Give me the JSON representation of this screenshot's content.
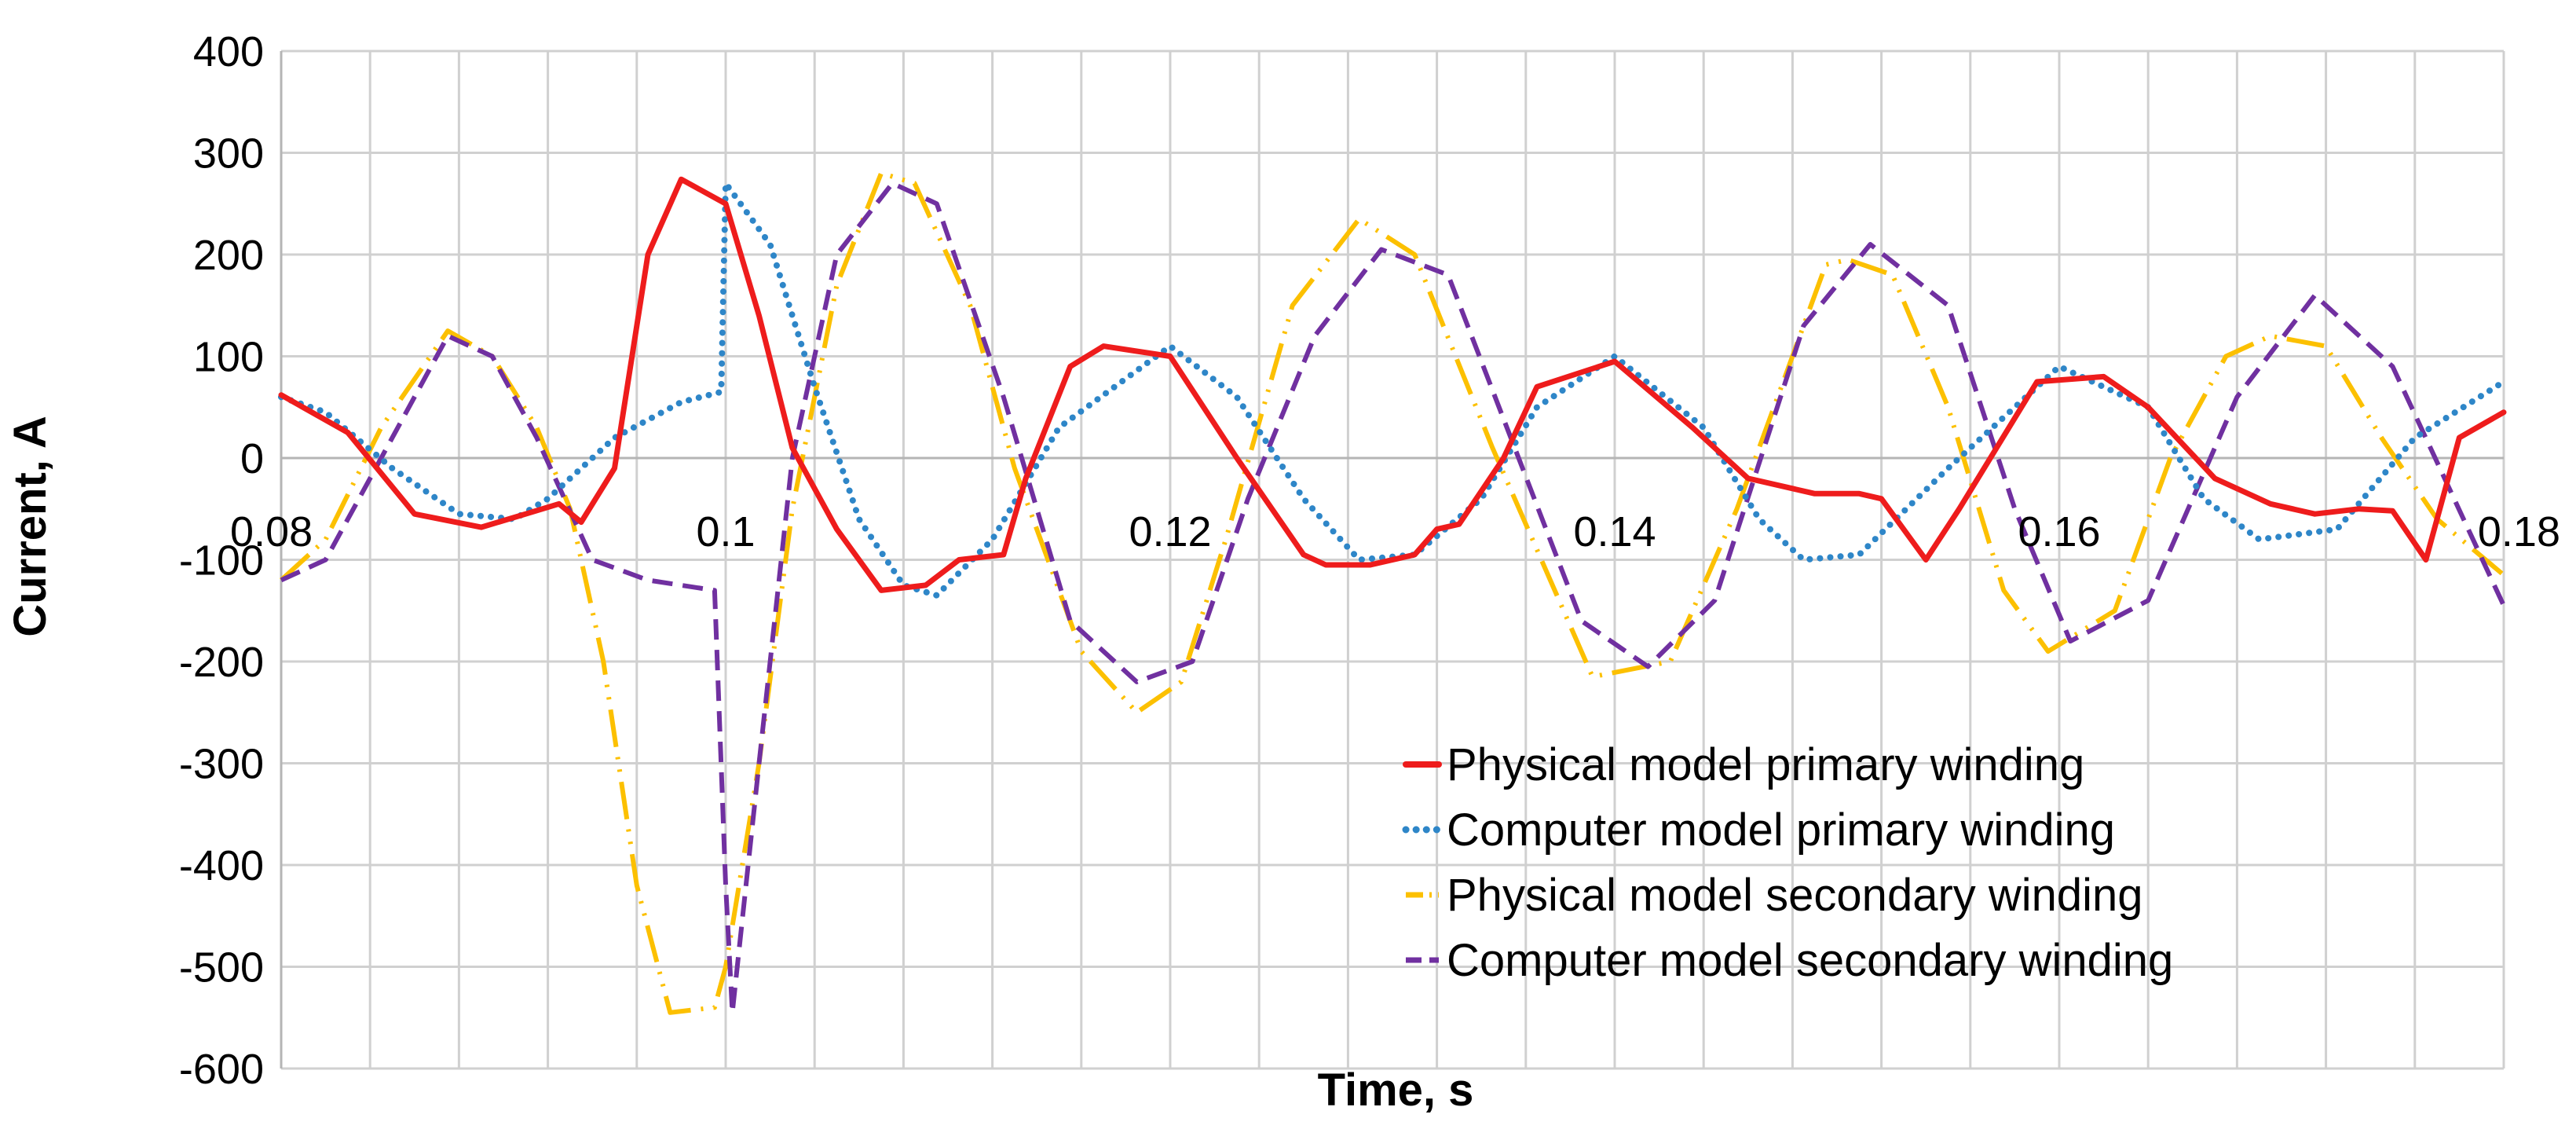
{
  "chart_data": {
    "type": "line",
    "xlabel": "Time, s",
    "ylabel": "Current, A",
    "xlim": [
      0.08,
      0.18
    ],
    "ylim": [
      -600,
      400
    ],
    "xticks": [
      0.08,
      0.1,
      0.12,
      0.14,
      0.16,
      0.18
    ],
    "xtick_labels": [
      "0.08",
      "0.1",
      "0.12",
      "0.14",
      "0.16",
      "0.18"
    ],
    "yticks": [
      -600,
      -500,
      -400,
      -300,
      -200,
      -100,
      0,
      100,
      200,
      300,
      400
    ],
    "ytick_labels": [
      "-600",
      "-500",
      "-400",
      "-300",
      "-200",
      "-100",
      "0",
      "100",
      "200",
      "300",
      "400"
    ],
    "x_grid_step": 0.004,
    "grid": true,
    "legend_position": "bottom-right",
    "series": [
      {
        "name": "Physical model primary winding",
        "color": "#ee1c1c",
        "style": "solid",
        "x": [
          0.08,
          0.083,
          0.086,
          0.089,
          0.091,
          0.0925,
          0.0935,
          0.095,
          0.0965,
          0.098,
          0.1,
          0.1015,
          0.103,
          0.105,
          0.107,
          0.109,
          0.1105,
          0.1125,
          0.1135,
          0.1155,
          0.117,
          0.12,
          0.123,
          0.126,
          0.127,
          0.129,
          0.131,
          0.132,
          0.133,
          0.135,
          0.1365,
          0.14,
          0.1435,
          0.146,
          0.149,
          0.151,
          0.152,
          0.154,
          0.1555,
          0.159,
          0.162,
          0.164,
          0.167,
          0.1695,
          0.1715,
          0.1735,
          0.175,
          0.1765,
          0.178,
          0.18
        ],
        "y": [
          62,
          25,
          -55,
          -68,
          -55,
          -45,
          -63,
          -10,
          200,
          274,
          250,
          140,
          10,
          -70,
          -130,
          -125,
          -100,
          -95,
          -20,
          90,
          110,
          100,
          0,
          -95,
          -105,
          -105,
          -95,
          -70,
          -65,
          0,
          70,
          95,
          30,
          -20,
          -35,
          -35,
          -40,
          -100,
          -50,
          75,
          80,
          50,
          -20,
          -45,
          -55,
          -50,
          -52,
          -100,
          20,
          45
        ]
      },
      {
        "name": "Computer model primary winding",
        "color": "#2e86c8",
        "style": "dotted",
        "x": [
          0.08,
          0.082,
          0.085,
          0.088,
          0.0905,
          0.092,
          0.095,
          0.098,
          0.0998,
          0.1,
          0.1005,
          0.102,
          0.104,
          0.106,
          0.108,
          0.1095,
          0.112,
          0.115,
          0.12,
          0.123,
          0.126,
          0.1285,
          0.131,
          0.134,
          0.1365,
          0.14,
          0.144,
          0.1465,
          0.1485,
          0.151,
          0.155,
          0.16,
          0.164,
          0.1665,
          0.169,
          0.1725,
          0.176,
          0.18
        ],
        "y": [
          60,
          45,
          -10,
          -55,
          -60,
          -40,
          20,
          55,
          65,
          270,
          255,
          210,
          70,
          -60,
          -125,
          -135,
          -80,
          30,
          110,
          60,
          -40,
          -100,
          -95,
          -40,
          50,
          100,
          30,
          -60,
          -100,
          -95,
          -10,
          90,
          50,
          -40,
          -80,
          -70,
          20,
          75
        ]
      },
      {
        "name": "Physical model secondary winding",
        "color": "#fcc000",
        "style": "dashdot",
        "x": [
          0.08,
          0.082,
          0.0845,
          0.0875,
          0.0895,
          0.0915,
          0.093,
          0.0945,
          0.096,
          0.0975,
          0.0995,
          0.1,
          0.1015,
          0.103,
          0.105,
          0.107,
          0.1085,
          0.111,
          0.113,
          0.116,
          0.1185,
          0.1205,
          0.1225,
          0.1255,
          0.1285,
          0.131,
          0.1345,
          0.139,
          0.1425,
          0.1455,
          0.1495,
          0.1505,
          0.1525,
          0.155,
          0.1575,
          0.1595,
          0.1625,
          0.165,
          0.1675,
          0.1695,
          0.172,
          0.1745,
          0.177,
          0.18
        ],
        "y": [
          -120,
          -80,
          30,
          125,
          100,
          30,
          -50,
          -200,
          -420,
          -545,
          -540,
          -500,
          -300,
          -50,
          170,
          280,
          270,
          150,
          -10,
          -190,
          -250,
          -220,
          -80,
          150,
          235,
          200,
          10,
          -215,
          -200,
          -50,
          190,
          195,
          180,
          50,
          -130,
          -190,
          -150,
          0,
          100,
          120,
          110,
          20,
          -60,
          -115
        ]
      },
      {
        "name": "Computer model secondary winding",
        "color": "#7030a0",
        "style": "dashed",
        "x": [
          0.08,
          0.082,
          0.085,
          0.0875,
          0.0895,
          0.0915,
          0.094,
          0.0965,
          0.0995,
          0.1,
          0.1003,
          0.1015,
          0.103,
          0.105,
          0.1075,
          0.1095,
          0.1125,
          0.1155,
          0.1185,
          0.121,
          0.1235,
          0.1265,
          0.1295,
          0.1325,
          0.1355,
          0.1385,
          0.1415,
          0.1445,
          0.1485,
          0.1515,
          0.155,
          0.158,
          0.1605,
          0.164,
          0.168,
          0.1715,
          0.175,
          0.18
        ],
        "y": [
          -120,
          -100,
          20,
          120,
          100,
          20,
          -100,
          -120,
          -130,
          -420,
          -545,
          -300,
          0,
          200,
          270,
          250,
          60,
          -160,
          -220,
          -200,
          -40,
          120,
          205,
          180,
          10,
          -160,
          -205,
          -140,
          130,
          210,
          150,
          -50,
          -180,
          -140,
          60,
          160,
          90,
          -145
        ]
      }
    ]
  }
}
